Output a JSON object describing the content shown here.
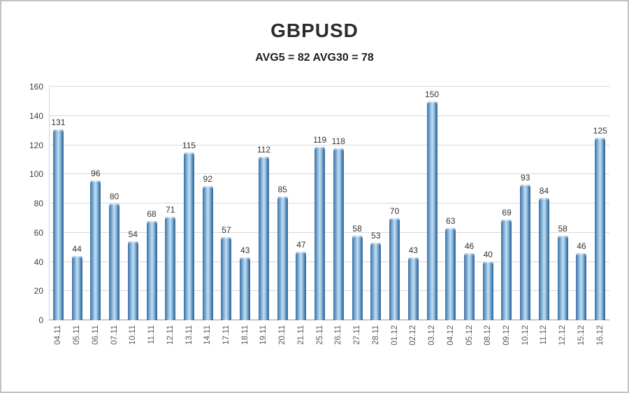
{
  "chart_data": {
    "type": "bar",
    "title": "GBPUSD",
    "subtitle": "AVG5 = 82 AVG30 = 78",
    "categories": [
      "04.11",
      "05.11",
      "06.11",
      "07.11",
      "10.11",
      "11.11",
      "12.11",
      "13.11",
      "14.11",
      "17.11",
      "18.11",
      "19.11",
      "20.11",
      "21.11",
      "25.11",
      "26.11",
      "27.11",
      "28.11",
      "01.12",
      "02.12",
      "03.12",
      "04.12",
      "05.12",
      "08.12",
      "09.12",
      "10.12",
      "11.12",
      "12.12",
      "15.12",
      "16.12"
    ],
    "values": [
      131,
      44,
      96,
      80,
      54,
      68,
      71,
      115,
      92,
      57,
      43,
      112,
      85,
      47,
      119,
      118,
      58,
      53,
      70,
      43,
      150,
      63,
      46,
      40,
      69,
      93,
      84,
      58,
      46,
      125
    ],
    "xlabel": "",
    "ylabel": "",
    "ylim": [
      0,
      160
    ],
    "ytick_step": 20,
    "grid": "horizontal",
    "legend": "none",
    "bar_color": "#5b9bd5",
    "bar_edge_color": "#2f6191",
    "data_labels": true
  }
}
